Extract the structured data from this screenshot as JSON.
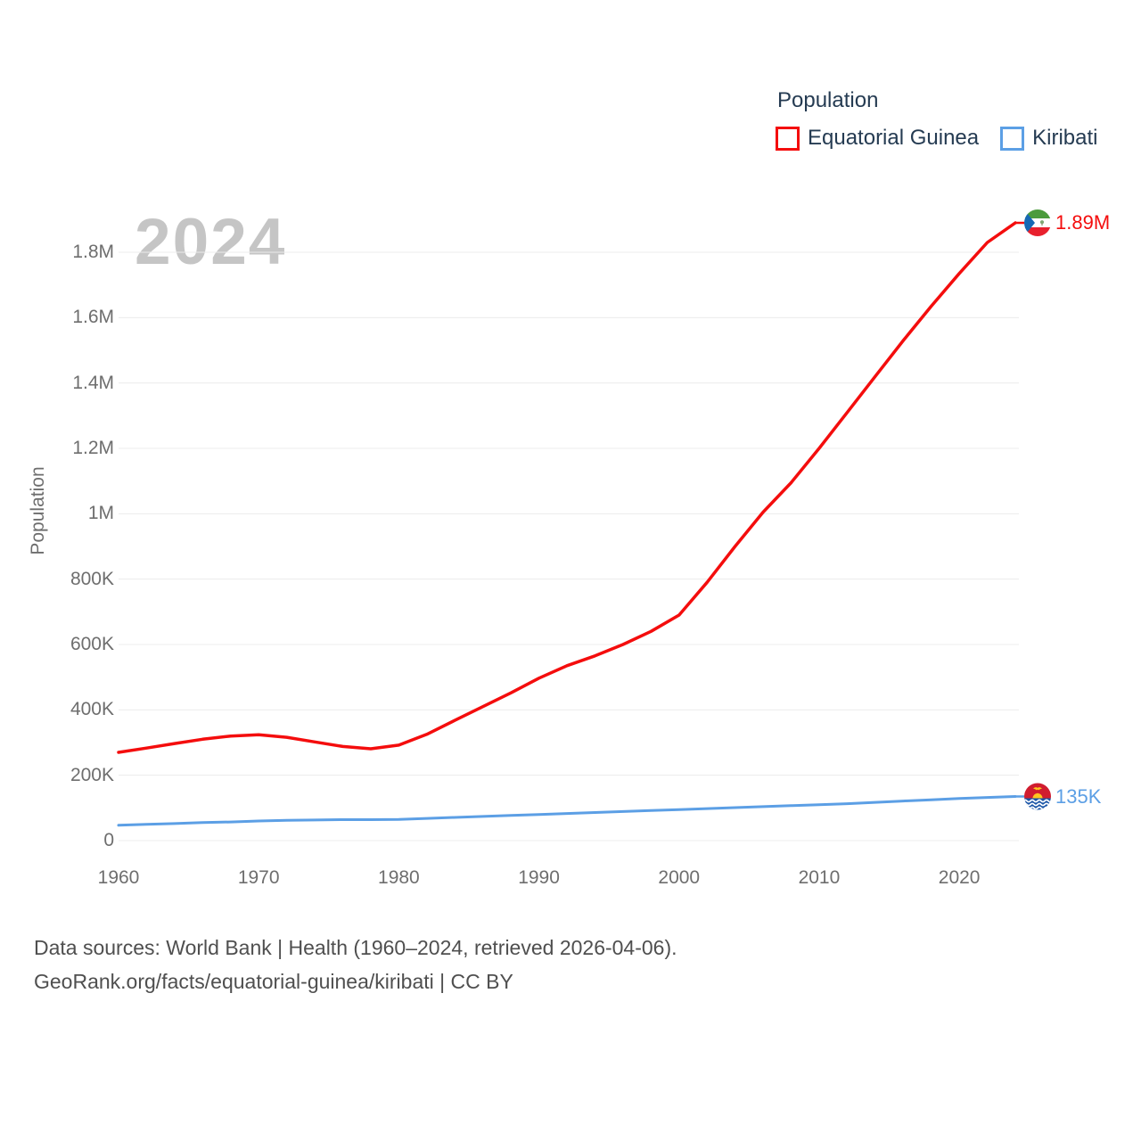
{
  "watermark": "2024",
  "legend": {
    "title": "Population",
    "items": [
      {
        "label": "Equatorial Guinea",
        "color": "#f40d0d"
      },
      {
        "label": "Kiribati",
        "color": "#5c9fe5"
      }
    ]
  },
  "y_axis": {
    "title": "Population"
  },
  "footer": {
    "line1": "Data sources: World Bank | Health (1960–2024, retrieved 2026-04-06).",
    "line2": "GeoRank.org/facts/equatorial-guinea/kiribati | CC BY"
  },
  "chart_data": {
    "type": "line",
    "title": "Population",
    "xlabel": "",
    "ylabel": "Population",
    "xlim": [
      1960,
      2024
    ],
    "ylim": [
      0,
      1800000
    ],
    "grid": "horizontal",
    "legend_position": "top-right",
    "x_ticks": [
      "1960",
      "1970",
      "1980",
      "1990",
      "2000",
      "2010",
      "2020"
    ],
    "y_ticks": [
      {
        "value": 0,
        "label": "0"
      },
      {
        "value": 200000,
        "label": "200K"
      },
      {
        "value": 400000,
        "label": "400K"
      },
      {
        "value": 600000,
        "label": "600K"
      },
      {
        "value": 800000,
        "label": "800K"
      },
      {
        "value": 1000000,
        "label": "1M"
      },
      {
        "value": 1200000,
        "label": "1.2M"
      },
      {
        "value": 1400000,
        "label": "1.4M"
      },
      {
        "value": 1600000,
        "label": "1.6M"
      },
      {
        "value": 1800000,
        "label": "1.8M"
      }
    ],
    "x": [
      1960,
      1962,
      1964,
      1966,
      1968,
      1970,
      1972,
      1974,
      1976,
      1978,
      1980,
      1982,
      1984,
      1986,
      1988,
      1990,
      1992,
      1994,
      1996,
      1998,
      2000,
      2002,
      2004,
      2006,
      2008,
      2010,
      2012,
      2014,
      2016,
      2018,
      2020,
      2022,
      2024
    ],
    "series": [
      {
        "name": "Equatorial Guinea",
        "color": "#f40d0d",
        "end_label": "1.89M",
        "flag": "equatorial-guinea-flag",
        "values": [
          270000,
          283000,
          297000,
          310000,
          320000,
          324000,
          316000,
          302000,
          288000,
          281000,
          292000,
          325000,
          368000,
          410000,
          452000,
          497000,
          535000,
          565000,
          600000,
          640000,
          690000,
          790000,
          900000,
          1005000,
          1095000,
          1200000,
          1310000,
          1420000,
          1530000,
          1635000,
          1735000,
          1830000,
          1890000
        ]
      },
      {
        "name": "Kiribati",
        "color": "#5c9fe5",
        "end_label": "135K",
        "flag": "kiribati-flag",
        "values": [
          47000,
          50000,
          52000,
          55000,
          57000,
          60000,
          62000,
          63000,
          64000,
          64000,
          65000,
          68000,
          71000,
          74000,
          77000,
          80000,
          83000,
          86000,
          89000,
          92000,
          95000,
          98000,
          101000,
          104000,
          107000,
          110000,
          113000,
          117000,
          121000,
          125000,
          129000,
          132000,
          135000
        ]
      }
    ]
  }
}
